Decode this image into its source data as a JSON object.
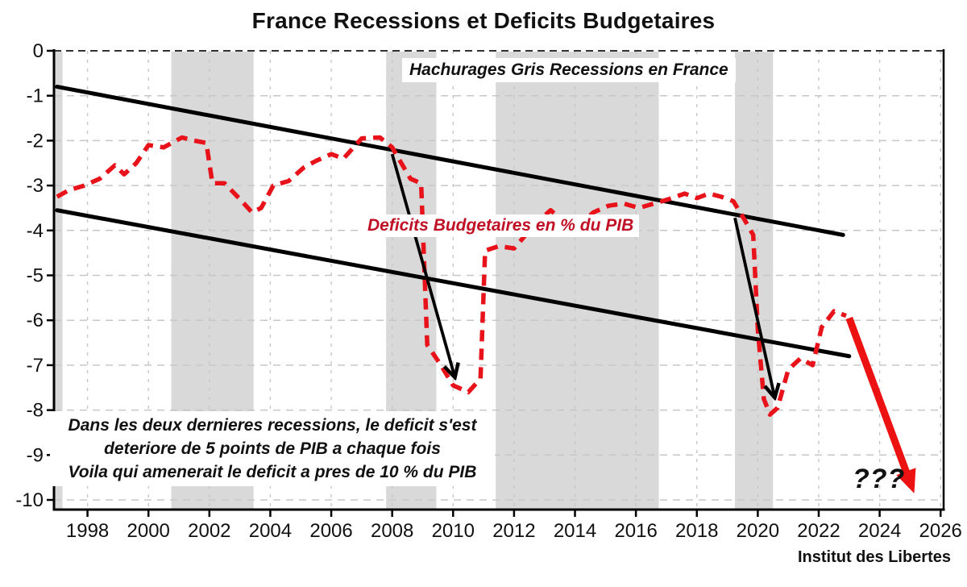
{
  "title": "France Recessions et Deficits Budgetaires",
  "footer_credit": "Institut des Libertes",
  "annotations": {
    "recessions_note": "Hachurages Gris Recessions en France",
    "series_label": "Deficits Budgetaires en % du PIB",
    "bottom_note": [
      "Dans les deux dernieres recessions, le deficit s'est",
      "deteriore de 5 points de PIB a chaque fois",
      "Voila qui amenerait le deficit a pres de 10 % du PIB"
    ],
    "question_marks": "???"
  },
  "chart_data": {
    "type": "line",
    "title": "France Recessions et Deficits Budgetaires",
    "xlabel": "",
    "ylabel": "Deficits Budgetaires en % du PIB",
    "xlim": [
      1996.9,
      2026.1
    ],
    "ylim": [
      -10.2,
      0
    ],
    "grid": true,
    "x_ticks": [
      1998,
      2000,
      2002,
      2004,
      2006,
      2008,
      2010,
      2012,
      2014,
      2016,
      2018,
      2020,
      2022,
      2024,
      2026
    ],
    "y_ticks": [
      0,
      -1,
      -2,
      -3,
      -4,
      -5,
      -6,
      -7,
      -8,
      -9,
      -10
    ],
    "recession_bands": [
      [
        1996.9,
        1997.18
      ],
      [
        2000.75,
        2003.45
      ],
      [
        2007.8,
        2009.45
      ],
      [
        2011.4,
        2016.75
      ],
      [
        2019.25,
        2020.5
      ]
    ],
    "series": [
      {
        "name": "Deficits Budgetaires en % du PIB",
        "style": "dashed",
        "points": [
          [
            1997.0,
            -3.25
          ],
          [
            1997.4,
            -3.1
          ],
          [
            1997.9,
            -3.0
          ],
          [
            1998.4,
            -2.85
          ],
          [
            1998.9,
            -2.55
          ],
          [
            1999.2,
            -2.75
          ],
          [
            1999.6,
            -2.5
          ],
          [
            2000.0,
            -2.1
          ],
          [
            2000.5,
            -2.15
          ],
          [
            2001.1,
            -1.93
          ],
          [
            2001.5,
            -2.0
          ],
          [
            2001.9,
            -2.05
          ],
          [
            2002.1,
            -2.95
          ],
          [
            2002.5,
            -2.95
          ],
          [
            2003.0,
            -3.3
          ],
          [
            2003.4,
            -3.6
          ],
          [
            2003.7,
            -3.5
          ],
          [
            2004.1,
            -3.0
          ],
          [
            2004.6,
            -2.9
          ],
          [
            2005.1,
            -2.6
          ],
          [
            2005.5,
            -2.45
          ],
          [
            2006.0,
            -2.3
          ],
          [
            2006.4,
            -2.4
          ],
          [
            2007.0,
            -1.95
          ],
          [
            2007.6,
            -1.93
          ],
          [
            2008.0,
            -2.15
          ],
          [
            2008.3,
            -2.5
          ],
          [
            2008.6,
            -2.85
          ],
          [
            2008.95,
            -2.95
          ],
          [
            2009.15,
            -6.55
          ],
          [
            2009.6,
            -7.0
          ],
          [
            2010.0,
            -7.45
          ],
          [
            2010.5,
            -7.6
          ],
          [
            2010.9,
            -7.3
          ],
          [
            2011.05,
            -4.45
          ],
          [
            2011.5,
            -4.35
          ],
          [
            2012.0,
            -4.4
          ],
          [
            2012.7,
            -3.85
          ],
          [
            2013.2,
            -3.55
          ],
          [
            2013.7,
            -3.85
          ],
          [
            2014.1,
            -3.9
          ],
          [
            2014.6,
            -3.6
          ],
          [
            2015.1,
            -3.45
          ],
          [
            2015.6,
            -3.4
          ],
          [
            2016.1,
            -3.5
          ],
          [
            2016.6,
            -3.4
          ],
          [
            2017.1,
            -3.3
          ],
          [
            2017.6,
            -3.18
          ],
          [
            2018.0,
            -3.28
          ],
          [
            2018.4,
            -3.18
          ],
          [
            2018.8,
            -3.25
          ],
          [
            2019.2,
            -3.35
          ],
          [
            2019.6,
            -3.8
          ],
          [
            2019.85,
            -4.1
          ],
          [
            2020.0,
            -6.2
          ],
          [
            2020.2,
            -7.75
          ],
          [
            2020.4,
            -8.1
          ],
          [
            2020.65,
            -7.95
          ],
          [
            2021.0,
            -7.1
          ],
          [
            2021.4,
            -6.85
          ],
          [
            2021.8,
            -7.0
          ],
          [
            2022.1,
            -6.15
          ],
          [
            2022.5,
            -5.8
          ],
          [
            2022.9,
            -5.9
          ]
        ]
      }
    ],
    "trend_lines": [
      {
        "x1": 1997.0,
        "y1": -0.8,
        "x2": 2022.8,
        "y2": -4.1
      },
      {
        "x1": 1997.0,
        "y1": -3.55,
        "x2": 2023.0,
        "y2": -6.8
      }
    ],
    "arrows": [
      {
        "x1": 2008.0,
        "y1": -2.3,
        "x2": 2010.05,
        "y2": -7.25,
        "style": "thin"
      },
      {
        "x1": 2019.25,
        "y1": -3.72,
        "x2": 2020.55,
        "y2": -7.7,
        "style": "thin"
      },
      {
        "x1": 2023.0,
        "y1": -5.95,
        "x2": 2025.05,
        "y2": -9.7,
        "style": "thick"
      }
    ],
    "colors": {
      "band": "#d9d9d9",
      "grid": "#c7c7c7",
      "zero_line": "#333333",
      "axis": "#000000",
      "trend": "#000000",
      "series": "#e8121a",
      "series_label": "#c01025",
      "forecast_arrow": "#ed1212",
      "tick_label": "#111111"
    }
  }
}
